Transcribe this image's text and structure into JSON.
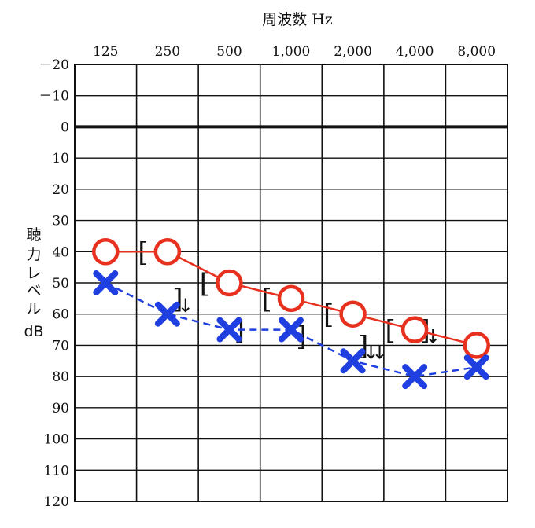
{
  "chart_data": {
    "type": "line",
    "title": "周波数 Hz",
    "ylabel_lines": [
      "聴",
      "力",
      "レ",
      "ベ",
      "ル",
      "dB"
    ],
    "categories": [
      "125",
      "250",
      "500",
      "1,000",
      "2,000",
      "4,000",
      "8,000"
    ],
    "y_ticks": [
      "－20",
      "－10",
      "0",
      "10",
      "20",
      "30",
      "40",
      "50",
      "60",
      "70",
      "80",
      "90",
      "100",
      "110",
      "120"
    ],
    "ylim": [
      -20,
      120
    ],
    "y_inverted": true,
    "grid": true,
    "series": [
      {
        "values": [
          40,
          40,
          50,
          55,
          60,
          65,
          70
        ],
        "marker": "circle",
        "line": "solid",
        "color": "#e8301f"
      },
      {
        "values": [
          50,
          60,
          65,
          65,
          75,
          80,
          77
        ],
        "marker": "cross",
        "line": "dashed",
        "color": "#1f3fe0"
      }
    ],
    "annotations": {
      "left_brackets": {
        "symbol": "[",
        "values": [
          null,
          40,
          50,
          55,
          60,
          65,
          null
        ]
      },
      "right_brackets": {
        "symbol": "]",
        "values": [
          null,
          55,
          65,
          67,
          70,
          65,
          null
        ]
      },
      "arrows": {
        "symbol": "↓",
        "values": [
          null,
          1,
          null,
          null,
          2,
          1,
          null
        ]
      }
    }
  }
}
